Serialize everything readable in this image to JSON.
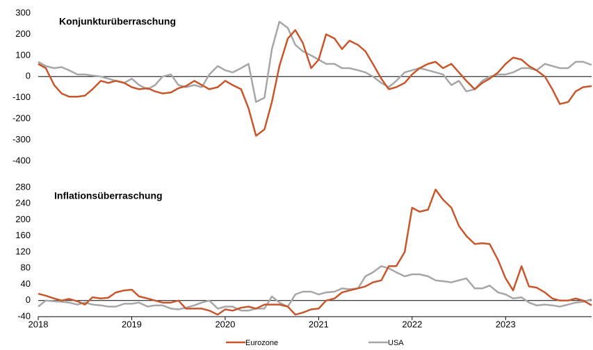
{
  "chart_data": [
    {
      "type": "line",
      "title": "Konjunkturüberraschung",
      "x": [
        2018.0,
        2018.08,
        2018.17,
        2018.25,
        2018.33,
        2018.42,
        2018.5,
        2018.58,
        2018.67,
        2018.75,
        2018.83,
        2018.92,
        2019.0,
        2019.08,
        2019.17,
        2019.25,
        2019.33,
        2019.42,
        2019.5,
        2019.58,
        2019.67,
        2019.75,
        2019.83,
        2019.92,
        2020.0,
        2020.08,
        2020.17,
        2020.25,
        2020.33,
        2020.42,
        2020.5,
        2020.58,
        2020.67,
        2020.75,
        2020.83,
        2020.92,
        2021.0,
        2021.08,
        2021.17,
        2021.25,
        2021.33,
        2021.42,
        2021.5,
        2021.58,
        2021.67,
        2021.75,
        2021.83,
        2021.92,
        2022.0,
        2022.08,
        2022.17,
        2022.25,
        2022.33,
        2022.42,
        2022.5,
        2022.58,
        2022.67,
        2022.75,
        2022.83,
        2022.92,
        2023.0,
        2023.08,
        2023.17,
        2023.25,
        2023.33,
        2023.42,
        2023.5,
        2023.58,
        2023.67,
        2023.75,
        2023.83,
        2023.92
      ],
      "series": [
        {
          "color": "#c8562a",
          "values": [
            60,
            40,
            -40,
            -80,
            -95,
            -95,
            -90,
            -60,
            -20,
            -30,
            -20,
            -30,
            -50,
            -60,
            -55,
            -70,
            -80,
            -75,
            -55,
            -45,
            -20,
            -40,
            -60,
            -50,
            -20,
            -40,
            -60,
            -150,
            -280,
            -250,
            -120,
            50,
            180,
            220,
            160,
            40,
            80,
            200,
            180,
            130,
            170,
            150,
            120,
            60,
            -10,
            -60,
            -50,
            -30,
            10,
            40,
            60,
            70,
            40,
            60,
            20,
            -20,
            -60,
            -30,
            -10,
            20,
            60,
            90,
            80,
            50,
            30,
            0,
            -60,
            -130,
            -120,
            -70,
            -50,
            -45
          ]
        },
        {
          "color": "#a6a6a6",
          "values": [
            70,
            50,
            40,
            45,
            30,
            10,
            10,
            5,
            0,
            -10,
            -20,
            -30,
            -10,
            -40,
            -60,
            -40,
            0,
            10,
            -40,
            -50,
            -40,
            -50,
            10,
            50,
            30,
            20,
            40,
            60,
            -120,
            -100,
            130,
            260,
            230,
            150,
            120,
            100,
            80,
            60,
            60,
            40,
            40,
            30,
            20,
            0,
            -30,
            -50,
            -20,
            20,
            30,
            40,
            30,
            20,
            10,
            -40,
            -20,
            -70,
            -60,
            -20,
            0,
            10,
            10,
            20,
            40,
            40,
            30,
            60,
            50,
            40,
            40,
            70,
            70,
            55
          ]
        }
      ],
      "xlim": [
        2018,
        2023.92
      ],
      "ylim": [
        -400,
        300
      ],
      "yticks": [
        -400,
        -300,
        -200,
        -100,
        0,
        100,
        200,
        300
      ]
    },
    {
      "type": "line",
      "title": "Inflationsüberraschung",
      "x": [
        2018.0,
        2018.08,
        2018.17,
        2018.25,
        2018.33,
        2018.42,
        2018.5,
        2018.58,
        2018.67,
        2018.75,
        2018.83,
        2018.92,
        2019.0,
        2019.08,
        2019.17,
        2019.25,
        2019.33,
        2019.42,
        2019.5,
        2019.58,
        2019.67,
        2019.75,
        2019.83,
        2019.92,
        2020.0,
        2020.08,
        2020.17,
        2020.25,
        2020.33,
        2020.42,
        2020.5,
        2020.58,
        2020.67,
        2020.75,
        2020.83,
        2020.92,
        2021.0,
        2021.08,
        2021.17,
        2021.25,
        2021.33,
        2021.42,
        2021.5,
        2021.58,
        2021.67,
        2021.75,
        2021.83,
        2021.92,
        2022.0,
        2022.08,
        2022.17,
        2022.25,
        2022.33,
        2022.42,
        2022.5,
        2022.58,
        2022.67,
        2022.75,
        2022.83,
        2022.92,
        2023.0,
        2023.08,
        2023.17,
        2023.25,
        2023.33,
        2023.42,
        2023.5,
        2023.58,
        2023.67,
        2023.75,
        2023.83,
        2023.92
      ],
      "series": [
        {
          "name": "Eurozone",
          "color": "#c8562a",
          "values": [
            17,
            12,
            5,
            0,
            4,
            -2,
            -10,
            8,
            5,
            7,
            20,
            25,
            27,
            10,
            5,
            0,
            -5,
            -5,
            0,
            -20,
            -20,
            -20,
            -25,
            -35,
            -22,
            -25,
            -18,
            -15,
            -20,
            -10,
            -10,
            -10,
            -15,
            -35,
            -30,
            -22,
            -20,
            0,
            5,
            20,
            25,
            30,
            35,
            45,
            50,
            85,
            85,
            120,
            230,
            220,
            225,
            275,
            250,
            230,
            185,
            160,
            140,
            142,
            140,
            100,
            55,
            25,
            85,
            35,
            32,
            20,
            5,
            0,
            0,
            5,
            0,
            -12
          ]
        },
        {
          "name": "USA",
          "color": "#a6a6a6",
          "values": [
            -15,
            0,
            -2,
            -3,
            -5,
            -10,
            -5,
            -10,
            -12,
            -15,
            -15,
            -8,
            -8,
            -5,
            -15,
            -12,
            -12,
            -20,
            -22,
            -18,
            -12,
            -5,
            0,
            -20,
            -15,
            -15,
            -25,
            -25,
            -20,
            -20,
            10,
            -5,
            -15,
            15,
            22,
            22,
            15,
            20,
            22,
            30,
            28,
            30,
            60,
            70,
            85,
            80,
            70,
            60,
            65,
            65,
            60,
            50,
            48,
            45,
            50,
            55,
            30,
            30,
            37,
            20,
            15,
            5,
            8,
            -5,
            -12,
            -10,
            -12,
            -15,
            -10,
            -5,
            -3,
            3
          ]
        }
      ],
      "xlim": [
        2018,
        2023.92
      ],
      "ylim": [
        -40,
        280
      ],
      "yticks": [
        -40,
        0,
        40,
        80,
        120,
        160,
        200,
        240,
        280
      ],
      "xticks": [
        2018,
        2019,
        2020,
        2021,
        2022,
        2023
      ]
    }
  ]
}
